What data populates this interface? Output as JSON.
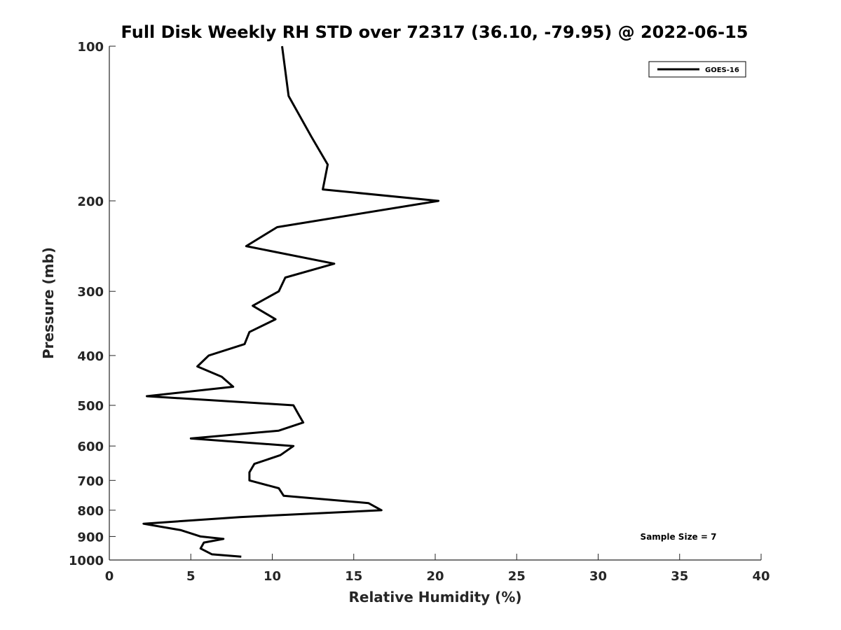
{
  "chart_data": {
    "type": "line",
    "title": "Full Disk Weekly RH STD over 72317 (36.10, -79.95) @ 2022-06-15",
    "xlabel": "Relative Humidity (%)",
    "ylabel": "Pressure (mb)",
    "xlim": [
      0,
      40
    ],
    "ylim": [
      1000,
      100
    ],
    "y_scale": "log",
    "y_inverted": true,
    "x_ticks": [
      0,
      5,
      10,
      15,
      20,
      25,
      30,
      35,
      40
    ],
    "y_ticks": [
      100,
      200,
      300,
      400,
      500,
      600,
      700,
      800,
      900,
      1000
    ],
    "legend_position": "top-right",
    "grid": false,
    "annotation": "Sample Size = 7",
    "series": [
      {
        "name": "GOES-16",
        "color": "#000000",
        "points": [
          [
            10.6,
            100
          ],
          [
            11.0,
            125
          ],
          [
            12.4,
            150
          ],
          [
            13.4,
            170
          ],
          [
            13.1,
            190
          ],
          [
            20.2,
            200
          ],
          [
            10.3,
            225
          ],
          [
            8.4,
            245
          ],
          [
            13.8,
            265
          ],
          [
            10.8,
            282
          ],
          [
            10.4,
            300
          ],
          [
            8.8,
            320
          ],
          [
            10.2,
            340
          ],
          [
            8.6,
            360
          ],
          [
            8.3,
            380
          ],
          [
            6.1,
            400
          ],
          [
            5.4,
            420
          ],
          [
            6.9,
            440
          ],
          [
            7.6,
            460
          ],
          [
            2.3,
            480
          ],
          [
            11.3,
            500
          ],
          [
            11.6,
            520
          ],
          [
            11.9,
            540
          ],
          [
            10.4,
            560
          ],
          [
            5.0,
            580
          ],
          [
            11.3,
            600
          ],
          [
            10.5,
            625
          ],
          [
            8.9,
            650
          ],
          [
            8.6,
            675
          ],
          [
            8.6,
            700
          ],
          [
            10.4,
            725
          ],
          [
            10.7,
            750
          ],
          [
            15.9,
            775
          ],
          [
            16.7,
            800
          ],
          [
            8.0,
            825
          ],
          [
            2.1,
            850
          ],
          [
            4.4,
            875
          ],
          [
            5.6,
            900
          ],
          [
            7.0,
            910
          ],
          [
            5.8,
            925
          ],
          [
            5.6,
            950
          ],
          [
            6.3,
            975
          ],
          [
            8.1,
            985
          ]
        ]
      }
    ]
  }
}
